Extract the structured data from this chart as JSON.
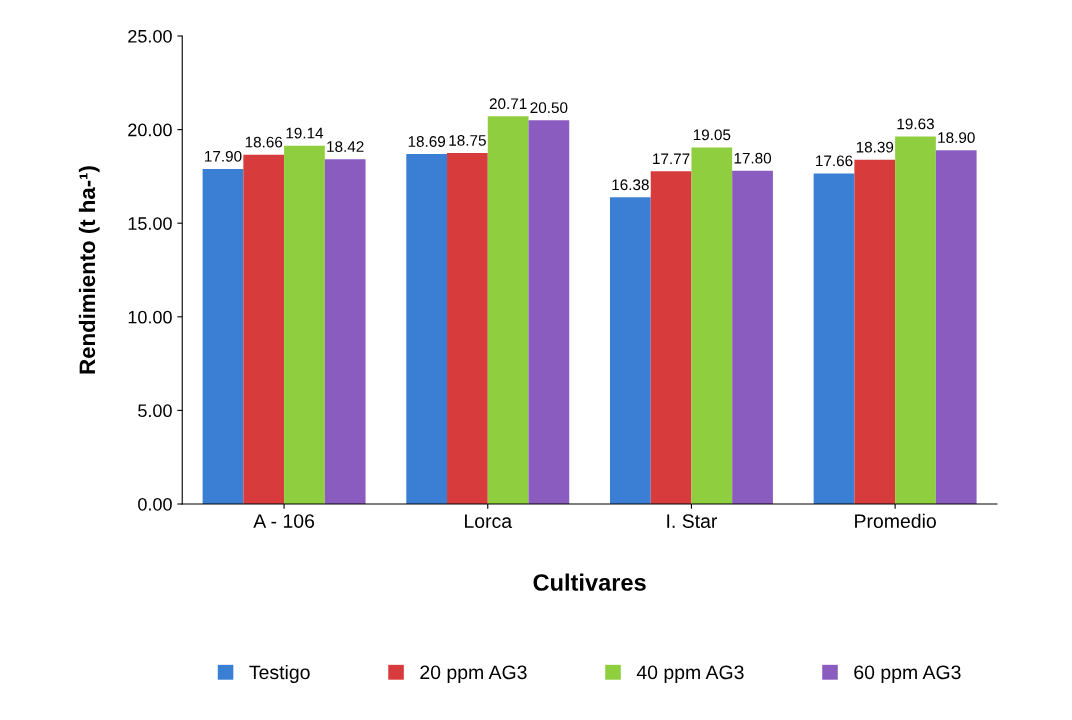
{
  "chart_data": {
    "type": "bar",
    "xlabel": "Cultivares",
    "ylabel": "Rendimiento (t ha-¹)",
    "categories": [
      "A - 106",
      "Lorca",
      "I. Star",
      "Promedio"
    ],
    "series": [
      {
        "name": "Testigo",
        "color": "#3b7fd4",
        "values": [
          17.9,
          18.69,
          16.38,
          17.66
        ],
        "value_labels": [
          "17.90",
          "18.69",
          "16.38",
          "17.66"
        ]
      },
      {
        "name": "20 ppm AG3",
        "color": "#d83b3b",
        "values": [
          18.66,
          18.75,
          17.77,
          18.39
        ],
        "value_labels": [
          "18.66",
          "18.75",
          "17.77",
          "18.39"
        ]
      },
      {
        "name": "40 ppm AG3",
        "color": "#8fcf3f",
        "values": [
          19.14,
          20.71,
          19.05,
          19.63
        ],
        "value_labels": [
          "19.14",
          "20.71",
          "19.05",
          "19.63"
        ]
      },
      {
        "name": "60 ppm AG3",
        "color": "#8a5cc0",
        "values": [
          18.42,
          20.5,
          17.8,
          18.9
        ],
        "value_labels": [
          "18.42",
          "20.50",
          "17.80",
          "18.90"
        ]
      }
    ],
    "ylim": [
      0,
      25
    ],
    "yticks": [
      {
        "value": 0,
        "label": "0.00"
      },
      {
        "value": 5,
        "label": "5.00"
      },
      {
        "value": 10,
        "label": "10.00"
      },
      {
        "value": 15,
        "label": "15.00"
      },
      {
        "value": 20,
        "label": "20.00"
      },
      {
        "value": 25,
        "label": "25.00"
      }
    ],
    "grid": false,
    "legend": "bottom"
  }
}
